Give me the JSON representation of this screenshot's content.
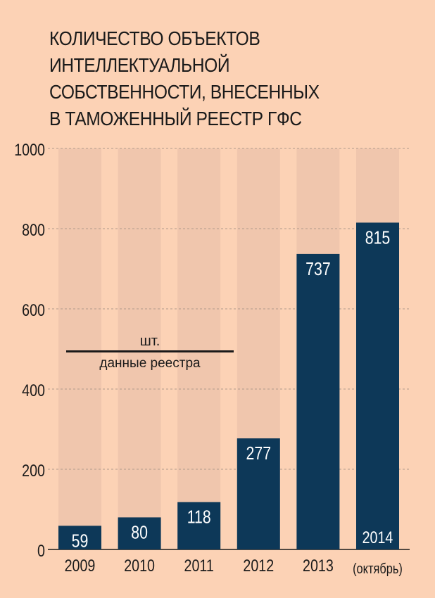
{
  "title_lines": [
    "КОЛИЧЕСТВО ОБЪЕКТОВ",
    "ИНТЕЛЛЕКТУАЛЬНОЙ",
    "СОБСТВЕННОСТИ, ВНЕСЕННЫХ",
    "В ТАМОЖЕННЫЙ РЕЕСТР ГФС"
  ],
  "note": {
    "unit": "шт.",
    "source": "данные реестра"
  },
  "colors": {
    "background": "#fcd2b5",
    "bar": "#0d3858",
    "track": "#f0c6ad",
    "grid": "#b09a8a",
    "bar_label": "#ffffff",
    "text": "#1a1a1a"
  },
  "chart_data": {
    "type": "bar",
    "categories": [
      "2009",
      "2010",
      "2011",
      "2012",
      "2013",
      "(октябрь)"
    ],
    "values": [
      59,
      80,
      118,
      277,
      737,
      815
    ],
    "bar_labels": [
      "59",
      "80",
      "118",
      "277",
      "737",
      "815"
    ],
    "bar_inner_caption": {
      "index": 5,
      "text": "2014"
    },
    "y_ticks": [
      "0",
      "200",
      "400",
      "600",
      "800",
      "1000"
    ],
    "ylim": [
      0,
      1000
    ],
    "grid": true
  }
}
